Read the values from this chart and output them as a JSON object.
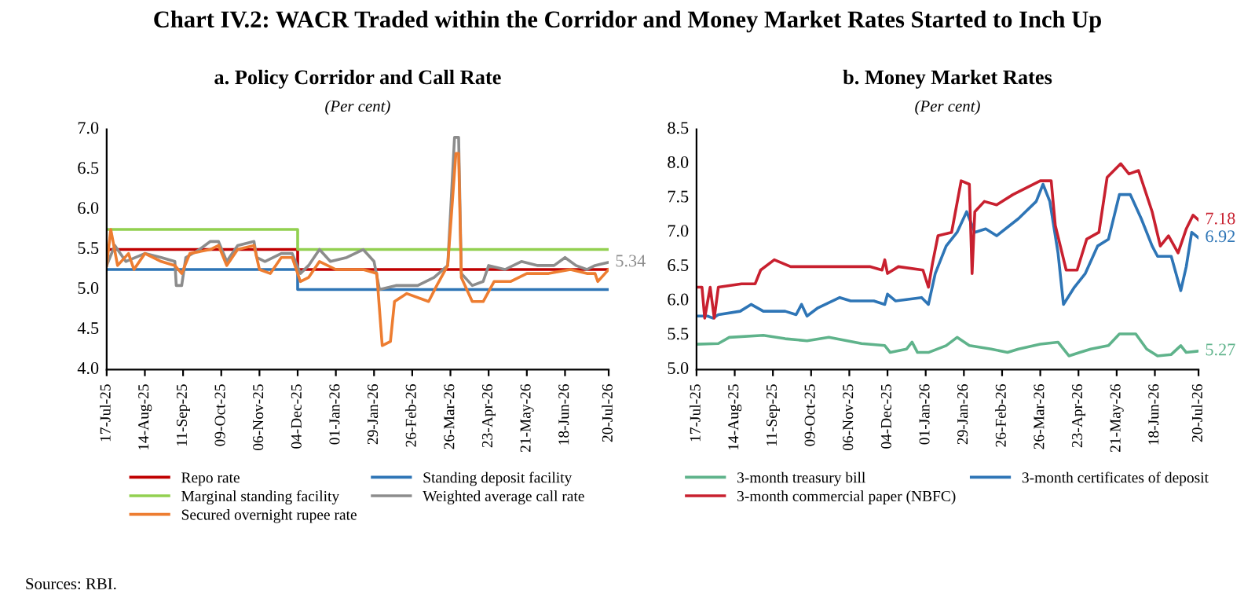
{
  "chart_data": [
    {
      "type": "line",
      "title": "a. Policy Corridor and Call Rate",
      "subtitle": "(Per cent)",
      "annotations": [
        "Chart IV.2: WACR Traded within the Corridor and Money Market Rates Started to Inch Up",
        "Sources: RBI.",
        {
          "text": "5.34",
          "x": "2026-07-20",
          "y": 5.34
        }
      ],
      "xlim": [
        "2025-07-17",
        "2026-07-20"
      ],
      "xticks": [
        {
          "value": "2025-07-17",
          "label": "17-Jul-25"
        },
        {
          "value": "2025-08-14",
          "label": "14-Aug-25"
        },
        {
          "value": "2025-09-11",
          "label": "11-Sep-25"
        },
        {
          "value": "2025-10-09",
          "label": "09-Oct-25"
        },
        {
          "value": "2025-11-06",
          "label": "06-Nov-25"
        },
        {
          "value": "2025-12-04",
          "label": "04-Dec-25"
        },
        {
          "value": "2026-01-01",
          "label": "01-Jan-26"
        },
        {
          "value": "2026-01-29",
          "label": "29-Jan-26"
        },
        {
          "value": "2026-02-26",
          "label": "26-Feb-26"
        },
        {
          "value": "2026-03-26",
          "label": "26-Mar-26"
        },
        {
          "value": "2026-04-23",
          "label": "23-Apr-26"
        },
        {
          "value": "2026-05-21",
          "label": "21-May-26"
        },
        {
          "value": "2026-06-18",
          "label": "18-Jun-26"
        },
        {
          "value": "2026-07-20",
          "label": "20-Jul-26"
        }
      ],
      "ylim": [
        4.0,
        7.0
      ],
      "yticks": [
        {
          "value": 4.0,
          "label": "4.0"
        },
        {
          "value": 4.5,
          "label": "4.5"
        },
        {
          "value": 5.0,
          "label": "5.0"
        },
        {
          "value": 5.5,
          "label": "5.5"
        },
        {
          "value": 6.0,
          "label": "6.0"
        },
        {
          "value": 6.5,
          "label": "6.5"
        },
        {
          "value": 7.0,
          "label": "7.0"
        }
      ],
      "legend": "bottom",
      "series": [
        {
          "name": "Repo rate",
          "type": "step",
          "color": "#c00000",
          "x": [
            "2025-07-17",
            "2025-12-04",
            "2026-07-20"
          ],
          "values": [
            5.5,
            5.25,
            5.25
          ]
        },
        {
          "name": "Standing deposit facility",
          "type": "step",
          "color": "#2e75b6",
          "x": [
            "2025-07-17",
            "2025-12-04",
            "2026-07-20"
          ],
          "values": [
            5.25,
            5.0,
            5.0
          ]
        },
        {
          "name": "Marginal standing facility",
          "type": "step",
          "color": "#92d050",
          "x": [
            "2025-07-17",
            "2025-12-04",
            "2026-07-20"
          ],
          "values": [
            5.75,
            5.5,
            5.5
          ]
        },
        {
          "name": "Weighted average call rate",
          "type": "line",
          "color": "#8c8c8c",
          "x": [
            "2025-07-17",
            "2025-07-23",
            "2025-07-31",
            "2025-08-14",
            "2025-08-26",
            "2025-09-05",
            "2025-09-06",
            "2025-09-10",
            "2025-09-13",
            "2025-09-23",
            "2025-10-01",
            "2025-10-07",
            "2025-10-13",
            "2025-10-21",
            "2025-11-02",
            "2025-11-04",
            "2025-11-10",
            "2025-11-22",
            "2025-11-30",
            "2025-12-06",
            "2025-12-12",
            "2025-12-20",
            "2025-12-28",
            "2026-01-09",
            "2026-01-21",
            "2026-01-29",
            "2026-02-02",
            "2026-02-14",
            "2026-03-02",
            "2026-03-14",
            "2026-03-24",
            "2026-03-29",
            "2026-04-01",
            "2026-04-03",
            "2026-04-11",
            "2026-04-19",
            "2026-04-23",
            "2026-05-05",
            "2026-05-17",
            "2026-05-29",
            "2026-06-10",
            "2026-06-18",
            "2026-06-26",
            "2026-07-04",
            "2026-07-10",
            "2026-07-20"
          ],
          "values": [
            5.3,
            5.55,
            5.35,
            5.45,
            5.4,
            5.35,
            5.05,
            5.05,
            5.4,
            5.5,
            5.6,
            5.6,
            5.35,
            5.55,
            5.6,
            5.4,
            5.35,
            5.45,
            5.45,
            5.2,
            5.3,
            5.5,
            5.35,
            5.4,
            5.5,
            5.35,
            5.0,
            5.05,
            5.05,
            5.15,
            5.3,
            6.9,
            6.9,
            5.2,
            5.05,
            5.1,
            5.3,
            5.25,
            5.35,
            5.3,
            5.3,
            5.4,
            5.3,
            5.25,
            5.3,
            5.34
          ]
        },
        {
          "name": "Secured overnight rupee rate",
          "type": "line",
          "color": "#ed7d31",
          "x": [
            "2025-07-17",
            "2025-07-20",
            "2025-07-25",
            "2025-08-02",
            "2025-08-06",
            "2025-08-14",
            "2025-08-26",
            "2025-09-05",
            "2025-09-10",
            "2025-09-16",
            "2025-10-01",
            "2025-10-07",
            "2025-10-13",
            "2025-10-21",
            "2025-11-02",
            "2025-11-06",
            "2025-11-14",
            "2025-11-22",
            "2025-11-30",
            "2025-12-06",
            "2025-12-12",
            "2025-12-20",
            "2026-01-01",
            "2026-01-21",
            "2026-01-31",
            "2026-02-04",
            "2026-02-10",
            "2026-02-13",
            "2026-02-22",
            "2026-03-10",
            "2026-03-16",
            "2026-03-24",
            "2026-03-30",
            "2026-04-01",
            "2026-04-03",
            "2026-04-11",
            "2026-04-19",
            "2026-04-27",
            "2026-05-09",
            "2026-05-21",
            "2026-06-06",
            "2026-06-22",
            "2026-07-04",
            "2026-07-10",
            "2026-07-12",
            "2026-07-20"
          ],
          "values": [
            5.3,
            5.75,
            5.3,
            5.45,
            5.25,
            5.45,
            5.35,
            5.3,
            5.2,
            5.45,
            5.5,
            5.55,
            5.3,
            5.5,
            5.55,
            5.25,
            5.2,
            5.4,
            5.4,
            5.1,
            5.15,
            5.35,
            5.25,
            5.25,
            5.2,
            4.3,
            4.35,
            4.85,
            4.95,
            4.85,
            5.05,
            5.3,
            6.7,
            6.7,
            5.15,
            4.85,
            4.85,
            5.1,
            5.1,
            5.2,
            5.2,
            5.25,
            5.2,
            5.2,
            5.1,
            5.25
          ]
        }
      ]
    },
    {
      "type": "line",
      "title": "b. Money Market Rates",
      "subtitle": "(Per cent)",
      "annotations": [
        {
          "text": "7.18",
          "x": "2026-07-20",
          "y": 7.18
        },
        {
          "text": "6.92",
          "x": "2026-07-20",
          "y": 6.92
        },
        {
          "text": "5.27",
          "x": "2026-07-20",
          "y": 5.27
        }
      ],
      "xlim": [
        "2025-07-17",
        "2026-07-20"
      ],
      "xticks": [
        {
          "value": "2025-07-17",
          "label": "17-Jul-25"
        },
        {
          "value": "2025-08-14",
          "label": "14-Aug-25"
        },
        {
          "value": "2025-09-11",
          "label": "11-Sep-25"
        },
        {
          "value": "2025-10-09",
          "label": "09-Oct-25"
        },
        {
          "value": "2025-11-06",
          "label": "06-Nov-25"
        },
        {
          "value": "2025-12-04",
          "label": "04-Dec-25"
        },
        {
          "value": "2026-01-01",
          "label": "01-Jan-26"
        },
        {
          "value": "2026-01-29",
          "label": "29-Jan-26"
        },
        {
          "value": "2026-02-26",
          "label": "26-Feb-26"
        },
        {
          "value": "2026-03-26",
          "label": "26-Mar-26"
        },
        {
          "value": "2026-04-23",
          "label": "23-Apr-26"
        },
        {
          "value": "2026-05-21",
          "label": "21-May-26"
        },
        {
          "value": "2026-06-18",
          "label": "18-Jun-26"
        },
        {
          "value": "2026-07-20",
          "label": "20-Jul-26"
        }
      ],
      "ylim": [
        5.0,
        8.5
      ],
      "yticks": [
        {
          "value": 5.0,
          "label": "5.0"
        },
        {
          "value": 5.5,
          "label": "5.5"
        },
        {
          "value": 6.0,
          "label": "6.0"
        },
        {
          "value": 6.5,
          "label": "6.5"
        },
        {
          "value": 7.0,
          "label": "7.0"
        },
        {
          "value": 7.5,
          "label": "7.5"
        },
        {
          "value": 8.0,
          "label": "8.0"
        },
        {
          "value": 8.5,
          "label": "8.5"
        }
      ],
      "legend": "bottom",
      "series": [
        {
          "name": "3-month treasury bill",
          "color": "#5fb38b",
          "x": [
            "2025-07-17",
            "2025-08-02",
            "2025-08-10",
            "2025-09-04",
            "2025-09-20",
            "2025-10-06",
            "2025-10-22",
            "2025-11-15",
            "2025-12-02",
            "2025-12-06",
            "2025-12-18",
            "2025-12-22",
            "2025-12-26",
            "2026-01-03",
            "2026-01-16",
            "2026-01-24",
            "2026-02-02",
            "2026-02-18",
            "2026-03-02",
            "2026-03-10",
            "2026-03-26",
            "2026-04-08",
            "2026-04-16",
            "2026-04-24",
            "2026-05-02",
            "2026-05-15",
            "2026-05-23",
            "2026-06-04",
            "2026-06-12",
            "2026-06-20",
            "2026-06-30",
            "2026-07-07",
            "2026-07-11",
            "2026-07-20"
          ],
          "values": [
            5.37,
            5.38,
            5.47,
            5.5,
            5.45,
            5.42,
            5.47,
            5.38,
            5.35,
            5.25,
            5.3,
            5.4,
            5.25,
            5.25,
            5.35,
            5.47,
            5.35,
            5.3,
            5.25,
            5.3,
            5.37,
            5.4,
            5.2,
            5.25,
            5.3,
            5.35,
            5.52,
            5.52,
            5.3,
            5.2,
            5.22,
            5.35,
            5.25,
            5.27
          ]
        },
        {
          "name": "3-month certificates of deposit",
          "color": "#2e75b6",
          "x": [
            "2025-07-17",
            "2025-07-25",
            "2025-07-29",
            "2025-08-02",
            "2025-08-18",
            "2025-08-26",
            "2025-09-04",
            "2025-09-20",
            "2025-09-28",
            "2025-10-02",
            "2025-10-06",
            "2025-10-14",
            "2025-10-30",
            "2025-11-07",
            "2025-11-24",
            "2025-12-02",
            "2025-12-04",
            "2025-12-10",
            "2025-12-29",
            "2026-01-03",
            "2026-01-08",
            "2026-01-16",
            "2026-01-24",
            "2026-01-31",
            "2026-02-06",
            "2026-02-14",
            "2026-02-22",
            "2026-03-10",
            "2026-03-23",
            "2026-03-28",
            "2026-04-02",
            "2026-04-08",
            "2026-04-12",
            "2026-04-20",
            "2026-04-28",
            "2026-05-07",
            "2026-05-15",
            "2026-05-23",
            "2026-05-31",
            "2026-06-08",
            "2026-06-16",
            "2026-06-20",
            "2026-06-30",
            "2026-07-07",
            "2026-07-11",
            "2026-07-15",
            "2026-07-20"
          ],
          "values": [
            5.78,
            5.78,
            5.75,
            5.8,
            5.85,
            5.95,
            5.85,
            5.85,
            5.8,
            5.95,
            5.78,
            5.9,
            6.05,
            6.0,
            6.0,
            5.95,
            6.1,
            6.0,
            6.05,
            5.95,
            6.4,
            6.8,
            7.0,
            7.3,
            7.0,
            7.05,
            6.95,
            7.2,
            7.45,
            7.7,
            7.45,
            6.7,
            5.95,
            6.2,
            6.4,
            6.8,
            6.9,
            7.55,
            7.55,
            7.2,
            6.8,
            6.65,
            6.65,
            6.15,
            6.5,
            7.0,
            6.92
          ]
        },
        {
          "name": "3-month commercial paper (NBFC)",
          "color": "#c8202f",
          "x": [
            "2025-07-17",
            "2025-07-21",
            "2025-07-23",
            "2025-07-27",
            "2025-07-30",
            "2025-08-02",
            "2025-08-19",
            "2025-08-29",
            "2025-09-02",
            "2025-09-12",
            "2025-09-24",
            "2025-10-23",
            "2025-11-21",
            "2025-11-30",
            "2025-12-02",
            "2025-12-04",
            "2025-12-12",
            "2025-12-30",
            "2026-01-03",
            "2026-01-06",
            "2026-01-10",
            "2026-01-20",
            "2026-01-27",
            "2026-02-02",
            "2026-02-04",
            "2026-02-06",
            "2026-02-13",
            "2026-02-22",
            "2026-03-06",
            "2026-03-26",
            "2026-04-03",
            "2026-04-06",
            "2026-04-14",
            "2026-04-22",
            "2026-04-29",
            "2026-05-08",
            "2026-05-14",
            "2026-05-24",
            "2026-05-30",
            "2026-06-06",
            "2026-06-16",
            "2026-06-22",
            "2026-06-28",
            "2026-07-05",
            "2026-07-11",
            "2026-07-16",
            "2026-07-20"
          ],
          "values": [
            6.2,
            6.2,
            5.75,
            6.2,
            5.75,
            6.2,
            6.25,
            6.25,
            6.45,
            6.6,
            6.5,
            6.5,
            6.5,
            6.45,
            6.6,
            6.4,
            6.5,
            6.45,
            6.2,
            6.55,
            6.95,
            7.0,
            7.75,
            7.7,
            6.4,
            7.3,
            7.45,
            7.4,
            7.55,
            7.75,
            7.75,
            7.1,
            6.45,
            6.45,
            6.9,
            7.0,
            7.8,
            8.0,
            7.85,
            7.9,
            7.3,
            6.8,
            6.95,
            6.7,
            7.05,
            7.25,
            7.18
          ]
        }
      ]
    }
  ]
}
